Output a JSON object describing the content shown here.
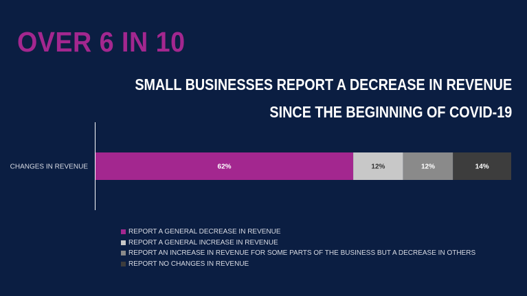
{
  "headline": "OVER 6 IN 10",
  "subtitle_line1": "SMALL BUSINESSES REPORT A DECREASE IN REVENUE",
  "subtitle_line2": "SINCE THE BEGINNING OF COVID-19",
  "colors": {
    "background": "#0b1e42",
    "accent": "#a3278f"
  },
  "chart_data": {
    "type": "bar",
    "orientation": "horizontal",
    "stacked": true,
    "categories": [
      "CHANGES IN REVENUE"
    ],
    "series": [
      {
        "name": "REPORT A GENERAL DECREASE IN REVENUE",
        "values": [
          62
        ],
        "label": "62%",
        "color": "#a3278f",
        "label_color": "#ffffff"
      },
      {
        "name": "REPORT A GENERAL INCREASE IN REVENUE",
        "values": [
          12
        ],
        "label": "12%",
        "color": "#c8c8c8",
        "label_color": "#333333"
      },
      {
        "name": "REPORT AN INCREASE IN REVENUE FOR SOME PARTS OF THE BUSINESS BUT A DECREASE IN OTHERS",
        "values": [
          12
        ],
        "label": "12%",
        "color": "#8a8a8a",
        "label_color": "#ffffff"
      },
      {
        "name": "REPORT NO CHANGES IN REVENUE",
        "values": [
          14
        ],
        "label": "14%",
        "color": "#3d3d3d",
        "label_color": "#ffffff"
      }
    ],
    "xlim": [
      0,
      100
    ],
    "grid": false,
    "legend_position": "bottom"
  }
}
